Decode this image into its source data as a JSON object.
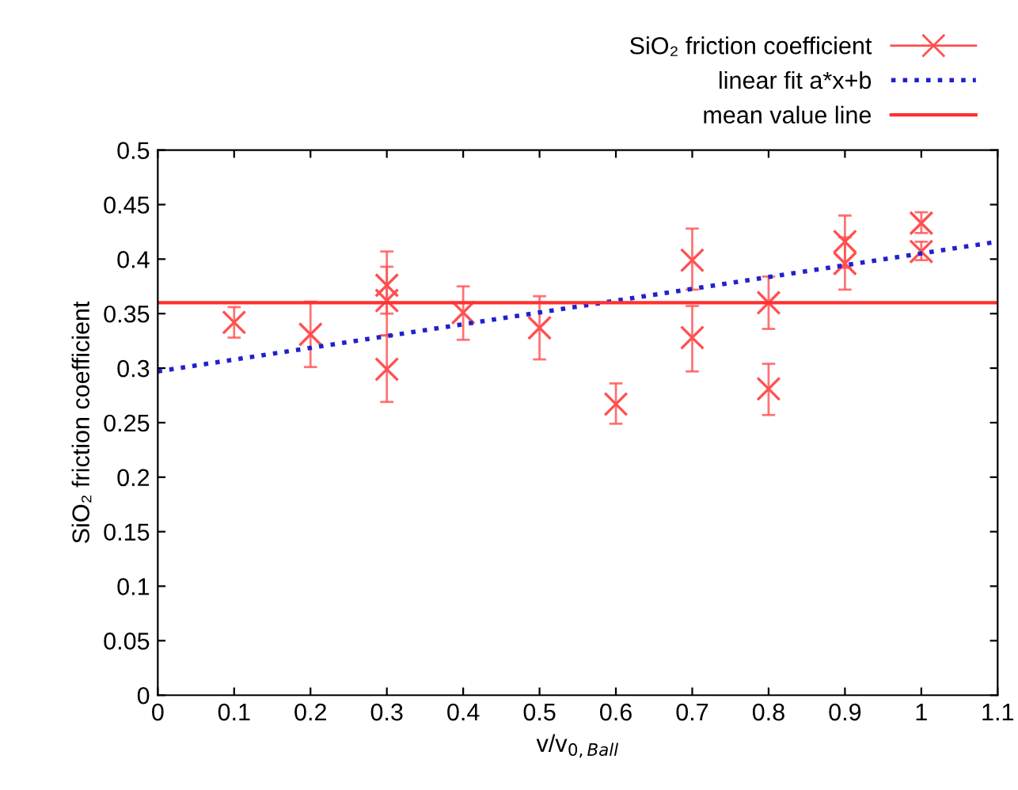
{
  "chart_data": {
    "type": "scatter",
    "xlabel": "v/v$_{0,Ball}$",
    "ylabel": "SiO₂ friction coefficient",
    "xlim": [
      0,
      1.1
    ],
    "xticks": [
      0,
      0.1,
      0.2,
      0.3,
      0.4,
      0.5,
      0.6,
      0.7,
      0.8,
      0.9,
      1,
      1.1
    ],
    "ylim": [
      0,
      0.5
    ],
    "yticks": [
      0,
      0.05,
      0.1,
      0.15,
      0.2,
      0.25,
      0.3,
      0.35,
      0.4,
      0.45,
      0.5
    ],
    "grid": false,
    "legend": "top right",
    "series": [
      {
        "name": "SiO₂ friction coefficient",
        "color": "#ff5050",
        "marker": "cross",
        "x": [
          0.1,
          0.2,
          0.3,
          0.3,
          0.3,
          0.4,
          0.5,
          0.6,
          0.7,
          0.7,
          0.8,
          0.8,
          0.9,
          0.9,
          1,
          1
        ],
        "values": [
          0.342,
          0.331,
          0.376,
          0.362,
          0.299,
          0.351,
          0.337,
          0.267,
          0.399,
          0.328,
          0.36,
          0.281,
          0.416,
          0.396,
          0.433,
          0.407
        ],
        "errors": [
          [
            0.328,
            0.356
          ],
          [
            0.301,
            0.361
          ],
          [
            0.35,
            0.407
          ],
          [
            0.33,
            0.393
          ],
          [
            0.269,
            0.33
          ],
          [
            0.326,
            0.375
          ],
          [
            0.308,
            0.366
          ],
          [
            0.249,
            0.286
          ],
          [
            0.372,
            0.428
          ],
          [
            0.297,
            0.357
          ],
          [
            0.336,
            0.384
          ],
          [
            0.257,
            0.304
          ],
          [
            0.392,
            0.44
          ],
          [
            0.372,
            0.42
          ],
          [
            0.424,
            0.443
          ],
          [
            0.399,
            0.416
          ]
        ]
      },
      {
        "name": "linear fit a*x+b",
        "type": "line",
        "color": "#2020d0",
        "line_style": "dotted",
        "marker": "none",
        "x": [
          0,
          1.1
        ],
        "values": [
          0.297,
          0.416
        ]
      }
    ],
    "ref_lines": [
      {
        "axis": "y",
        "value": 0.36,
        "label": "mean value line",
        "color": "#ff3030",
        "line_style": "solid"
      }
    ]
  }
}
